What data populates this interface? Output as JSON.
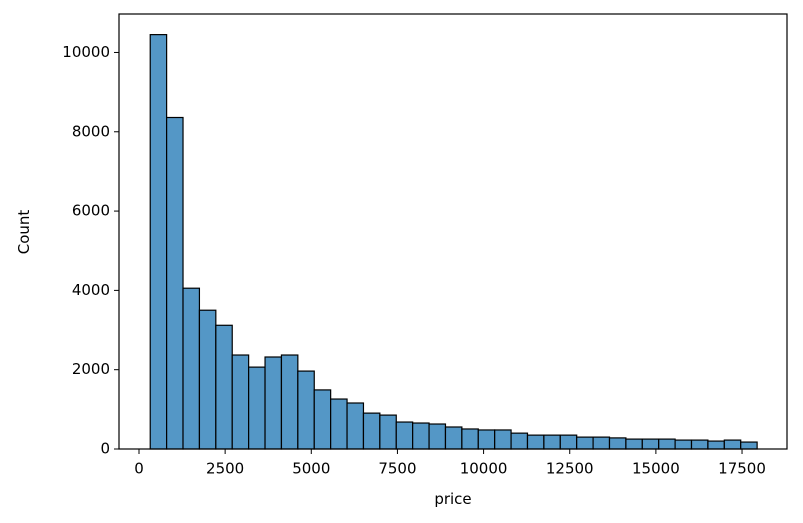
{
  "chart_data": {
    "type": "histogram",
    "x_label": "price",
    "y_label": "Count",
    "bins": [
      326,
      802,
      1278,
      1754,
      2230,
      2706,
      3182,
      3658,
      4134,
      4610,
      5086,
      5562,
      6038,
      6514,
      6990,
      7466,
      7942,
      8418,
      8894,
      9370,
      9846,
      10322,
      10798,
      11274,
      11750,
      12226,
      12702,
      13178,
      13654,
      14130,
      14606,
      15082,
      15558,
      16034,
      16510,
      16986,
      17462,
      17938
    ],
    "values": [
      10450,
      8360,
      4055,
      3500,
      3120,
      2370,
      2065,
      2320,
      2370,
      1965,
      1490,
      1260,
      1160,
      905,
      855,
      680,
      655,
      630,
      555,
      505,
      480,
      480,
      400,
      350,
      350,
      350,
      300,
      300,
      280,
      250,
      250,
      250,
      225,
      225,
      200,
      225,
      175
    ],
    "color": "#5497c6",
    "edgecolor": "#000000",
    "xlim": [
      -580,
      18805
    ],
    "xticks": [
      0,
      2500,
      5000,
      7500,
      10000,
      12500,
      15000,
      17500
    ],
    "ylim": [
      0,
      10970
    ],
    "yticks": [
      0,
      2000,
      4000,
      6000,
      8000,
      10000
    ]
  }
}
